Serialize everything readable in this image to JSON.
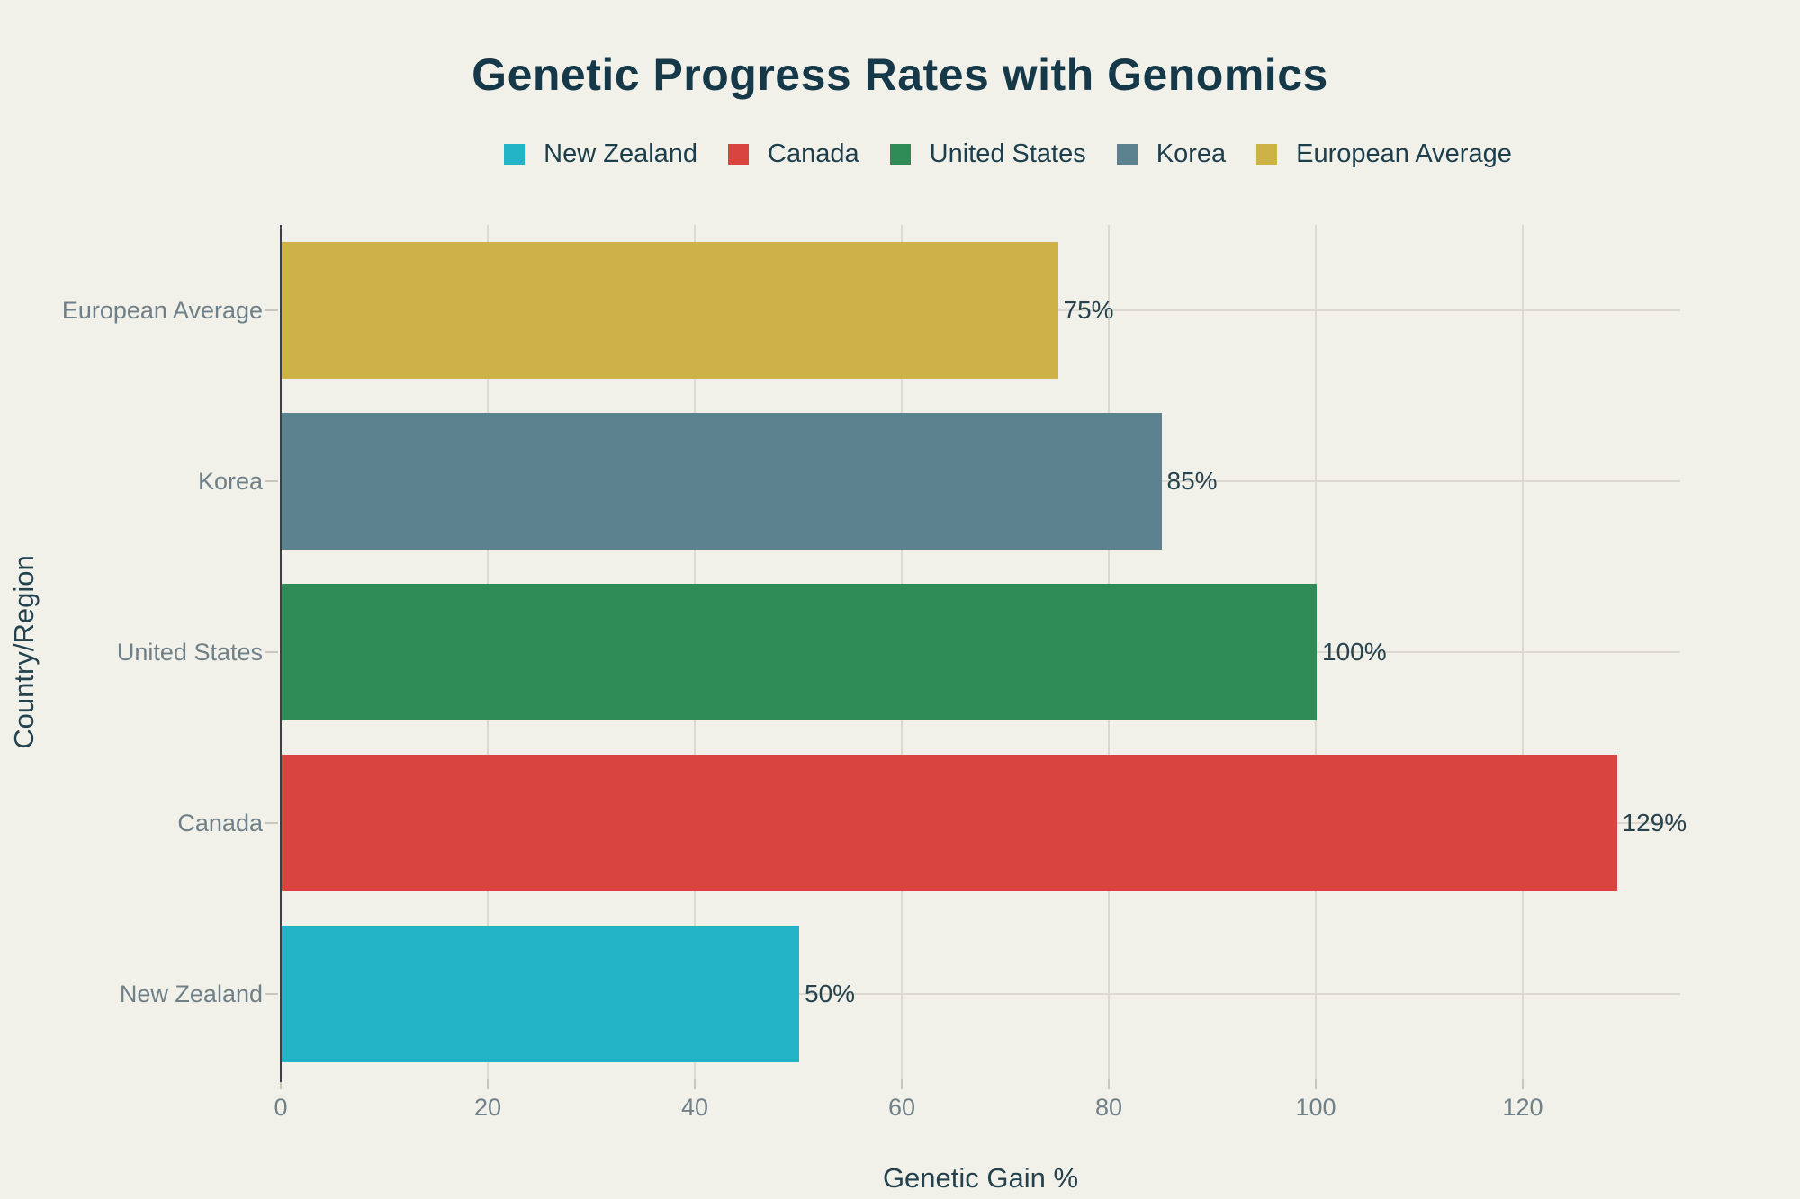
{
  "title": "Genetic Progress Rates with Genomics",
  "legend": {
    "items": [
      {
        "label": "New Zealand",
        "color": "#23b4c8"
      },
      {
        "label": "Canada",
        "color": "#d9453e"
      },
      {
        "label": "United States",
        "color": "#2e8b56"
      },
      {
        "label": "Korea",
        "color": "#5d828f"
      },
      {
        "label": "European Average",
        "color": "#ccb247"
      }
    ]
  },
  "chart_data": {
    "type": "bar",
    "orientation": "horizontal",
    "title": "Genetic Progress Rates with Genomics",
    "xlabel": "Genetic Gain %",
    "ylabel": "Country/Region",
    "xlim": [
      0,
      135
    ],
    "xticks": [
      0,
      20,
      40,
      60,
      80,
      100,
      120
    ],
    "grid": true,
    "legend_position": "top-center",
    "bars_top_to_bottom": [
      {
        "category": "European Average",
        "value": 75,
        "data_label": "75%",
        "color": "#ccb247"
      },
      {
        "category": "Korea",
        "value": 85,
        "data_label": "85%",
        "color": "#5d828f"
      },
      {
        "category": "United States",
        "value": 100,
        "data_label": "100%",
        "color": "#2e8b56"
      },
      {
        "category": "Canada",
        "value": 129,
        "data_label": "129%",
        "color": "#d9453e"
      },
      {
        "category": "New Zealand",
        "value": 50,
        "data_label": "50%",
        "color": "#23b4c8"
      }
    ]
  },
  "colors": {
    "background": "#f1f0e9",
    "title_text": "#16394a",
    "axis_title_text": "#24424e",
    "tick_label_text": "#6f8089",
    "value_label_text": "#27434e",
    "gridline": "#dcd9d0",
    "axis_line": "#3a4045"
  }
}
